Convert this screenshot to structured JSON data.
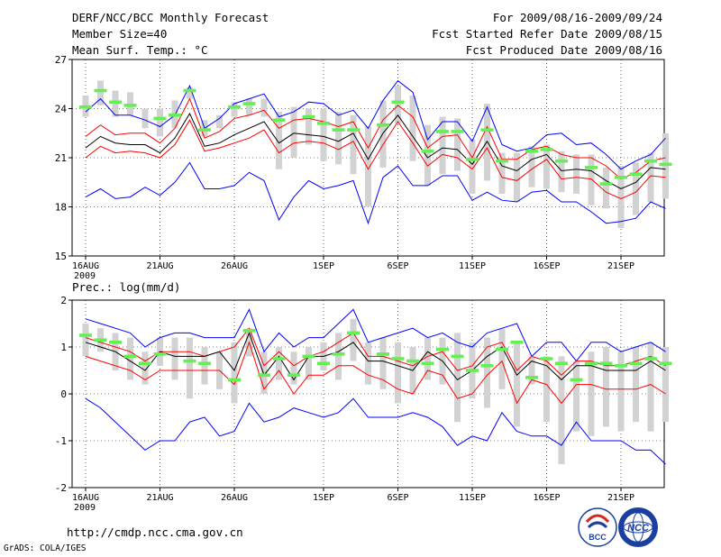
{
  "header": {
    "title": "DERF/NCC/BCC Monthly Forecast",
    "member_size": "Member Size=40",
    "variable": "Mean Surf. Temp.: °C",
    "period": "For 2009/08/16-2009/09/24",
    "refer_date": "Fcst Started Refer Date 2009/08/15",
    "produced_date": "Fcst Produced Date 2009/08/16"
  },
  "footer": {
    "url": "http://cmdp.ncc.cma.gov.cn",
    "grads": "GrADS: COLA/IGES",
    "logo_bcc_text": "BCC",
    "logo_ncc_text": "NCC"
  },
  "colors": {
    "ensemble_mean": "#000000",
    "spread": "#ff0000",
    "extremes": "#0000ff",
    "observed_marker": "#66ee55",
    "box": "#d2d2d2",
    "grid": "#000000"
  },
  "chart_data": [
    {
      "type": "line",
      "title": "Mean Surf. Temp.: °C",
      "ylim": [
        15,
        27
      ],
      "yticks": [
        15,
        18,
        21,
        24,
        27
      ],
      "x": [
        "16AUG",
        "17AUG",
        "18AUG",
        "19AUG",
        "20AUG",
        "21AUG",
        "22AUG",
        "23AUG",
        "24AUG",
        "25AUG",
        "26AUG",
        "27AUG",
        "28AUG",
        "29AUG",
        "30AUG",
        "31AUG",
        "1SEP",
        "2SEP",
        "3SEP",
        "4SEP",
        "5SEP",
        "6SEP",
        "7SEP",
        "8SEP",
        "9SEP",
        "10SEP",
        "11SEP",
        "12SEP",
        "13SEP",
        "14SEP",
        "15SEP",
        "16SEP",
        "17SEP",
        "18SEP",
        "19SEP",
        "20SEP",
        "21SEP",
        "22SEP",
        "23SEP",
        "24SEP"
      ],
      "xtick_labels": [
        {
          "index": 0,
          "label": "16AUG",
          "sublabel": "2009"
        },
        {
          "index": 5,
          "label": "21AUG"
        },
        {
          "index": 10,
          "label": "26AUG"
        },
        {
          "index": 16,
          "label": "1SEP"
        },
        {
          "index": 21,
          "label": "6SEP"
        },
        {
          "index": 26,
          "label": "11SEP"
        },
        {
          "index": 31,
          "label": "16SEP"
        },
        {
          "index": 36,
          "label": "21SEP"
        }
      ],
      "series": [
        {
          "name": "max",
          "color": "#0000ff",
          "values": [
            23.8,
            24.6,
            23.6,
            23.6,
            23.3,
            22.9,
            23.6,
            25.4,
            22.8,
            23.4,
            24.3,
            24.6,
            24.9,
            23.5,
            23.8,
            24.4,
            24.3,
            23.6,
            23.9,
            22.8,
            24.5,
            25.7,
            25.0,
            22.1,
            23.2,
            23.2,
            22.0,
            24.1,
            21.8,
            21.4,
            21.6,
            22.4,
            22.5,
            21.8,
            21.9,
            21.2,
            20.3,
            20.8,
            21.2,
            22.2
          ]
        },
        {
          "name": "upper",
          "color": "#ff0000",
          "values": [
            22.3,
            23.0,
            22.4,
            22.5,
            22.5,
            21.9,
            22.8,
            24.6,
            22.2,
            22.6,
            23.4,
            23.6,
            23.9,
            22.8,
            23.3,
            23.4,
            23.2,
            22.9,
            23.2,
            21.6,
            23.3,
            24.2,
            23.5,
            21.6,
            22.3,
            22.4,
            21.0,
            22.9,
            20.9,
            20.9,
            21.5,
            21.7,
            21.2,
            21.0,
            21.0,
            20.5,
            19.7,
            20.1,
            20.8,
            21.0
          ]
        },
        {
          "name": "mean",
          "color": "#000000",
          "values": [
            21.6,
            22.3,
            21.9,
            21.8,
            21.8,
            21.3,
            22.2,
            23.7,
            21.7,
            21.9,
            22.4,
            22.8,
            23.2,
            21.9,
            22.5,
            22.4,
            22.3,
            22.0,
            22.5,
            20.9,
            22.5,
            23.6,
            22.3,
            21.0,
            21.6,
            21.5,
            20.6,
            22.0,
            20.5,
            20.2,
            20.9,
            21.2,
            20.2,
            20.3,
            20.2,
            19.6,
            19.1,
            19.5,
            20.4,
            20.3
          ]
        },
        {
          "name": "lower",
          "color": "#ff0000",
          "values": [
            21.0,
            21.7,
            21.3,
            21.4,
            21.3,
            21.0,
            21.8,
            23.3,
            21.4,
            21.6,
            21.9,
            22.2,
            22.7,
            21.3,
            21.9,
            22.0,
            21.9,
            21.5,
            22.0,
            20.3,
            21.8,
            23.2,
            21.9,
            20.5,
            21.2,
            21.0,
            20.3,
            21.6,
            19.8,
            19.6,
            20.3,
            20.9,
            19.7,
            19.8,
            19.7,
            18.9,
            18.5,
            18.9,
            19.9,
            19.8
          ]
        },
        {
          "name": "min",
          "color": "#0000ff",
          "values": [
            18.6,
            19.1,
            18.5,
            18.6,
            19.2,
            18.7,
            19.5,
            20.7,
            19.1,
            19.1,
            19.3,
            20.1,
            19.6,
            17.2,
            18.6,
            19.6,
            19.1,
            19.3,
            19.6,
            17.0,
            19.8,
            20.5,
            19.3,
            19.3,
            19.9,
            19.9,
            18.4,
            18.9,
            18.4,
            18.3,
            18.9,
            19.0,
            18.3,
            18.3,
            17.7,
            17.0,
            17.1,
            17.3,
            18.3,
            17.9
          ]
        }
      ],
      "boxes": {
        "low": [
          23.5,
          24.2,
          23.5,
          23.6,
          22.8,
          22.3,
          22.8,
          24.6,
          22.3,
          22.8,
          23.5,
          23.6,
          23.5,
          20.3,
          21.0,
          21.8,
          20.8,
          20.6,
          20.0,
          18.0,
          20.4,
          23.1,
          20.8,
          19.3,
          20.0,
          20.2,
          18.8,
          19.6,
          18.8,
          18.3,
          19.2,
          19.1,
          18.9,
          18.8,
          18.1,
          17.9,
          16.7,
          17.5,
          18.3,
          18.5
        ],
        "high": [
          24.8,
          25.7,
          25.1,
          25.0,
          24.0,
          24.0,
          24.5,
          25.3,
          23.3,
          23.6,
          24.4,
          24.6,
          24.6,
          23.8,
          24.1,
          24.0,
          24.0,
          23.8,
          23.6,
          22.9,
          24.5,
          25.4,
          24.8,
          23.0,
          23.5,
          23.4,
          22.1,
          24.3,
          21.3,
          21.3,
          21.7,
          21.8,
          21.4,
          21.2,
          21.2,
          20.4,
          20.5,
          20.7,
          21.3,
          22.5
        ]
      },
      "observed": [
        24.1,
        25.1,
        24.4,
        24.2,
        null,
        23.4,
        23.6,
        25.1,
        22.7,
        null,
        24.1,
        24.3,
        null,
        23.3,
        null,
        23.5,
        23.1,
        22.7,
        22.7,
        null,
        23.0,
        24.4,
        null,
        21.4,
        22.6,
        22.6,
        20.9,
        22.7,
        20.8,
        null,
        21.4,
        21.5,
        20.8,
        null,
        20.4,
        19.4,
        19.8,
        20.0,
        20.8,
        20.6
      ]
    },
    {
      "type": "line",
      "title": "Prec.: log(mm/d)",
      "ylim": [
        -2,
        2
      ],
      "yticks": [
        -2,
        -1,
        0,
        1,
        2
      ],
      "x": [
        "16AUG",
        "17AUG",
        "18AUG",
        "19AUG",
        "20AUG",
        "21AUG",
        "22AUG",
        "23AUG",
        "24AUG",
        "25AUG",
        "26AUG",
        "27AUG",
        "28AUG",
        "29AUG",
        "30AUG",
        "31AUG",
        "1SEP",
        "2SEP",
        "3SEP",
        "4SEP",
        "5SEP",
        "6SEP",
        "7SEP",
        "8SEP",
        "9SEP",
        "10SEP",
        "11SEP",
        "12SEP",
        "13SEP",
        "14SEP",
        "15SEP",
        "16SEP",
        "17SEP",
        "18SEP",
        "19SEP",
        "20SEP",
        "21SEP",
        "22SEP",
        "23SEP",
        "24SEP"
      ],
      "xtick_labels": [
        {
          "index": 0,
          "label": "16AUG",
          "sublabel": "2009"
        },
        {
          "index": 5,
          "label": "21AUG"
        },
        {
          "index": 10,
          "label": "26AUG"
        },
        {
          "index": 16,
          "label": "1SEP"
        },
        {
          "index": 21,
          "label": "6SEP"
        },
        {
          "index": 26,
          "label": "11SEP"
        },
        {
          "index": 31,
          "label": "16SEP"
        },
        {
          "index": 36,
          "label": "21SEP"
        }
      ],
      "series": [
        {
          "name": "max",
          "color": "#0000ff",
          "values": [
            1.6,
            1.5,
            1.4,
            1.3,
            1.0,
            1.2,
            1.3,
            1.3,
            1.2,
            1.2,
            1.2,
            1.8,
            0.9,
            1.3,
            1.0,
            1.2,
            1.2,
            1.5,
            1.8,
            1.1,
            1.2,
            1.3,
            1.4,
            1.2,
            1.3,
            1.1,
            1.0,
            1.3,
            1.4,
            1.5,
            0.8,
            1.1,
            1.1,
            0.7,
            1.1,
            1.1,
            0.9,
            1.0,
            1.1,
            0.9
          ]
        },
        {
          "name": "upper",
          "color": "#ff0000",
          "values": [
            1.2,
            1.1,
            1.0,
            0.9,
            0.7,
            0.9,
            0.9,
            0.9,
            0.8,
            0.9,
            1.0,
            1.4,
            0.6,
            0.9,
            0.6,
            0.8,
            0.9,
            1.1,
            1.3,
            0.8,
            0.8,
            0.7,
            0.6,
            0.8,
            0.9,
            0.5,
            0.6,
            1.0,
            1.1,
            0.5,
            0.8,
            0.7,
            0.4,
            0.7,
            0.7,
            0.6,
            0.6,
            0.7,
            0.8,
            0.6
          ]
        },
        {
          "name": "mean",
          "color": "#000000",
          "values": [
            1.1,
            1.0,
            0.9,
            0.7,
            0.5,
            0.9,
            0.8,
            0.8,
            0.8,
            0.9,
            0.5,
            1.3,
            0.4,
            0.8,
            0.3,
            0.8,
            0.8,
            0.9,
            1.1,
            0.7,
            0.7,
            0.6,
            0.5,
            0.9,
            0.7,
            0.3,
            0.5,
            0.8,
            1.0,
            0.4,
            0.7,
            0.6,
            0.3,
            0.6,
            0.6,
            0.5,
            0.5,
            0.5,
            0.7,
            0.5
          ]
        },
        {
          "name": "lower",
          "color": "#ff0000",
          "values": [
            0.8,
            0.7,
            0.6,
            0.5,
            0.3,
            0.5,
            0.5,
            0.5,
            0.5,
            0.5,
            0.2,
            1.1,
            0.1,
            0.5,
            0.0,
            0.4,
            0.4,
            0.6,
            0.6,
            0.4,
            0.3,
            0.1,
            0.0,
            0.5,
            0.4,
            -0.1,
            0.0,
            0.4,
            0.7,
            -0.2,
            0.3,
            0.2,
            -0.2,
            0.2,
            0.2,
            0.1,
            0.1,
            0.1,
            0.2,
            0.0
          ]
        },
        {
          "name": "min",
          "color": "#0000ff",
          "values": [
            -0.1,
            -0.3,
            -0.6,
            -0.9,
            -1.2,
            -1.0,
            -1.0,
            -0.6,
            -0.5,
            -0.9,
            -0.8,
            -0.2,
            -0.6,
            -0.5,
            -0.3,
            -0.4,
            -0.5,
            -0.4,
            -0.1,
            -0.5,
            -0.5,
            -0.5,
            -0.4,
            -0.5,
            -0.7,
            -1.1,
            -0.9,
            -1.0,
            -0.4,
            -0.8,
            -0.9,
            -0.9,
            -1.1,
            -0.6,
            -1.0,
            -1.0,
            -1.0,
            -1.2,
            -1.2,
            -1.5
          ]
        }
      ],
      "boxes": {
        "low": [
          0.8,
          0.9,
          0.5,
          0.3,
          0.2,
          0.6,
          0.3,
          -0.1,
          0.2,
          0.1,
          -0.2,
          0.8,
          0.0,
          0.3,
          0.2,
          0.3,
          0.5,
          0.3,
          0.7,
          0.2,
          0.1,
          -0.2,
          0.0,
          0.3,
          0.2,
          -0.6,
          -0.1,
          -0.3,
          0.1,
          -0.7,
          0.2,
          -0.6,
          -1.5,
          -0.8,
          -0.9,
          -0.7,
          -0.8,
          -0.6,
          -0.8,
          -0.6
        ],
        "high": [
          1.5,
          1.4,
          1.3,
          1.2,
          0.9,
          1.2,
          1.2,
          1.2,
          1.0,
          0.9,
          1.1,
          1.4,
          0.9,
          1.0,
          0.9,
          1.0,
          1.1,
          1.3,
          1.6,
          1.1,
          1.2,
          1.1,
          1.0,
          1.2,
          1.2,
          1.3,
          1.1,
          1.2,
          1.4,
          1.1,
          0.8,
          0.8,
          0.8,
          0.7,
          0.9,
          1.0,
          0.9,
          1.0,
          1.1,
          1.0
        ]
      },
      "observed": [
        1.25,
        1.15,
        1.1,
        0.8,
        0.65,
        0.85,
        null,
        0.7,
        0.65,
        null,
        0.3,
        1.35,
        0.4,
        0.75,
        0.4,
        0.8,
        0.65,
        0.85,
        1.3,
        null,
        0.85,
        0.75,
        0.7,
        0.65,
        0.95,
        0.8,
        0.5,
        0.6,
        0.95,
        1.1,
        0.35,
        0.75,
        0.65,
        0.3,
        0.65,
        0.65,
        0.6,
        0.65,
        0.75,
        0.65
      ]
    }
  ]
}
